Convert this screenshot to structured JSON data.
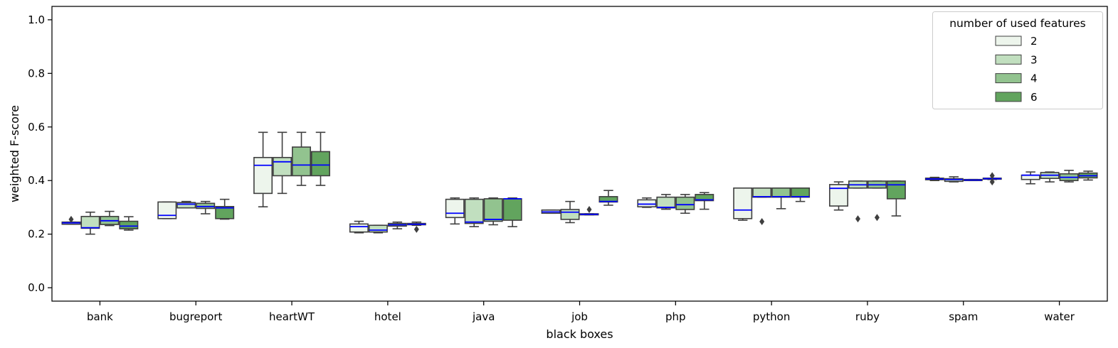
{
  "chart_data": {
    "type": "boxplot",
    "xlabel": "black boxes",
    "ylabel": "weighted F-score",
    "ylim": [
      -0.05,
      1.05
    ],
    "yticks": [
      0.0,
      0.2,
      0.4,
      0.6,
      0.8,
      1.0
    ],
    "ytick_labels": [
      "0.0",
      "0.2",
      "0.4",
      "0.6",
      "0.8",
      "1.0"
    ],
    "categories": [
      "bank",
      "bugreport",
      "heartWT",
      "hotel",
      "java",
      "job",
      "php",
      "python",
      "ruby",
      "spam",
      "water"
    ],
    "legend": {
      "title": "number of used features",
      "position": "top-right"
    },
    "median_color": "#0000ff",
    "series": [
      {
        "name": "2",
        "color": "#edf5ec",
        "boxes": [
          {
            "whislo": 0.237,
            "q1": 0.237,
            "med": 0.242,
            "q3": 0.245,
            "whishi": 0.245,
            "fliers": [
              0.255
            ]
          },
          {
            "whislo": 0.258,
            "q1": 0.258,
            "med": 0.27,
            "q3": 0.32,
            "whishi": 0.32,
            "fliers": []
          },
          {
            "whislo": 0.302,
            "q1": 0.352,
            "med": 0.457,
            "q3": 0.486,
            "whishi": 0.58,
            "fliers": []
          },
          {
            "whislo": 0.205,
            "q1": 0.208,
            "med": 0.228,
            "q3": 0.238,
            "whishi": 0.248,
            "fliers": []
          },
          {
            "whislo": 0.238,
            "q1": 0.262,
            "med": 0.278,
            "q3": 0.33,
            "whishi": 0.335,
            "fliers": []
          },
          {
            "whislo": 0.278,
            "q1": 0.278,
            "med": 0.283,
            "q3": 0.29,
            "whishi": 0.29,
            "fliers": []
          },
          {
            "whislo": 0.3,
            "q1": 0.302,
            "med": 0.312,
            "q3": 0.328,
            "whishi": 0.335,
            "fliers": []
          },
          {
            "whislo": 0.252,
            "q1": 0.258,
            "med": 0.29,
            "q3": 0.372,
            "whishi": 0.372,
            "fliers": []
          },
          {
            "whislo": 0.29,
            "q1": 0.305,
            "med": 0.371,
            "q3": 0.385,
            "whishi": 0.395,
            "fliers": []
          },
          {
            "whislo": 0.4,
            "q1": 0.403,
            "med": 0.406,
            "q3": 0.409,
            "whishi": 0.412,
            "fliers": []
          },
          {
            "whislo": 0.388,
            "q1": 0.404,
            "med": 0.42,
            "q3": 0.42,
            "whishi": 0.432,
            "fliers": []
          }
        ]
      },
      {
        "name": "3",
        "color": "#c1dfbf",
        "boxes": [
          {
            "whislo": 0.2,
            "q1": 0.222,
            "med": 0.224,
            "q3": 0.266,
            "whishi": 0.282,
            "fliers": []
          },
          {
            "whislo": 0.298,
            "q1": 0.298,
            "med": 0.312,
            "q3": 0.318,
            "whishi": 0.322,
            "fliers": []
          },
          {
            "whislo": 0.352,
            "q1": 0.418,
            "med": 0.47,
            "q3": 0.486,
            "whishi": 0.58,
            "fliers": []
          },
          {
            "whislo": 0.205,
            "q1": 0.208,
            "med": 0.215,
            "q3": 0.233,
            "whishi": 0.233,
            "fliers": []
          },
          {
            "whislo": 0.228,
            "q1": 0.24,
            "med": 0.245,
            "q3": 0.33,
            "whishi": 0.335,
            "fliers": []
          },
          {
            "whislo": 0.243,
            "q1": 0.255,
            "med": 0.282,
            "q3": 0.292,
            "whishi": 0.322,
            "fliers": []
          },
          {
            "whislo": 0.293,
            "q1": 0.298,
            "med": 0.3,
            "q3": 0.338,
            "whishi": 0.348,
            "fliers": []
          },
          {
            "whislo": 0.338,
            "q1": 0.338,
            "med": 0.34,
            "q3": 0.372,
            "whishi": 0.372,
            "fliers": [
              0.247
            ]
          },
          {
            "whislo": 0.372,
            "q1": 0.372,
            "med": 0.384,
            "q3": 0.398,
            "whishi": 0.398,
            "fliers": [
              0.257
            ]
          },
          {
            "whislo": 0.395,
            "q1": 0.397,
            "med": 0.404,
            "q3": 0.407,
            "whishi": 0.414,
            "fliers": []
          },
          {
            "whislo": 0.395,
            "q1": 0.408,
            "med": 0.42,
            "q3": 0.43,
            "whishi": 0.432,
            "fliers": []
          }
        ]
      },
      {
        "name": "4",
        "color": "#92c38f",
        "boxes": [
          {
            "whislo": 0.232,
            "q1": 0.236,
            "med": 0.25,
            "q3": 0.266,
            "whishi": 0.285,
            "fliers": []
          },
          {
            "whislo": 0.276,
            "q1": 0.296,
            "med": 0.303,
            "q3": 0.315,
            "whishi": 0.322,
            "fliers": []
          },
          {
            "whislo": 0.382,
            "q1": 0.418,
            "med": 0.458,
            "q3": 0.525,
            "whishi": 0.58,
            "fliers": []
          },
          {
            "whislo": 0.22,
            "q1": 0.23,
            "med": 0.235,
            "q3": 0.24,
            "whishi": 0.245,
            "fliers": []
          },
          {
            "whislo": 0.235,
            "q1": 0.248,
            "med": 0.255,
            "q3": 0.332,
            "whishi": 0.335,
            "fliers": []
          },
          {
            "whislo": 0.272,
            "q1": 0.272,
            "med": 0.274,
            "q3": 0.276,
            "whishi": 0.276,
            "fliers": [
              0.292
            ]
          },
          {
            "whislo": 0.278,
            "q1": 0.292,
            "med": 0.31,
            "q3": 0.338,
            "whishi": 0.348,
            "fliers": []
          },
          {
            "whislo": 0.295,
            "q1": 0.338,
            "med": 0.34,
            "q3": 0.372,
            "whishi": 0.372,
            "fliers": []
          },
          {
            "whislo": 0.372,
            "q1": 0.372,
            "med": 0.384,
            "q3": 0.398,
            "whishi": 0.398,
            "fliers": [
              0.262
            ]
          },
          {
            "whislo": 0.4,
            "q1": 0.4,
            "med": 0.402,
            "q3": 0.404,
            "whishi": 0.404,
            "fliers": []
          },
          {
            "whislo": 0.395,
            "q1": 0.4,
            "med": 0.412,
            "q3": 0.425,
            "whishi": 0.438,
            "fliers": []
          }
        ]
      },
      {
        "name": "6",
        "color": "#62a45e",
        "boxes": [
          {
            "whislo": 0.215,
            "q1": 0.22,
            "med": 0.23,
            "q3": 0.248,
            "whishi": 0.265,
            "fliers": []
          },
          {
            "whislo": 0.256,
            "q1": 0.258,
            "med": 0.298,
            "q3": 0.303,
            "whishi": 0.33,
            "fliers": []
          },
          {
            "whislo": 0.382,
            "q1": 0.418,
            "med": 0.458,
            "q3": 0.508,
            "whishi": 0.58,
            "fliers": []
          },
          {
            "whislo": 0.233,
            "q1": 0.235,
            "med": 0.237,
            "q3": 0.24,
            "whishi": 0.245,
            "fliers": [
              0.218
            ]
          },
          {
            "whislo": 0.228,
            "q1": 0.252,
            "med": 0.332,
            "q3": 0.332,
            "whishi": 0.335,
            "fliers": []
          },
          {
            "whislo": 0.308,
            "q1": 0.32,
            "med": 0.322,
            "q3": 0.34,
            "whishi": 0.363,
            "fliers": []
          },
          {
            "whislo": 0.293,
            "q1": 0.325,
            "med": 0.328,
            "q3": 0.348,
            "whishi": 0.355,
            "fliers": []
          },
          {
            "whislo": 0.322,
            "q1": 0.338,
            "med": 0.34,
            "q3": 0.372,
            "whishi": 0.372,
            "fliers": []
          },
          {
            "whislo": 0.268,
            "q1": 0.332,
            "med": 0.384,
            "q3": 0.398,
            "whishi": 0.398,
            "fliers": []
          },
          {
            "whislo": 0.404,
            "q1": 0.405,
            "med": 0.407,
            "q3": 0.409,
            "whishi": 0.409,
            "fliers": [
              0.395,
              0.418
            ]
          },
          {
            "whislo": 0.402,
            "q1": 0.41,
            "med": 0.418,
            "q3": 0.428,
            "whishi": 0.435,
            "fliers": []
          }
        ]
      }
    ]
  }
}
